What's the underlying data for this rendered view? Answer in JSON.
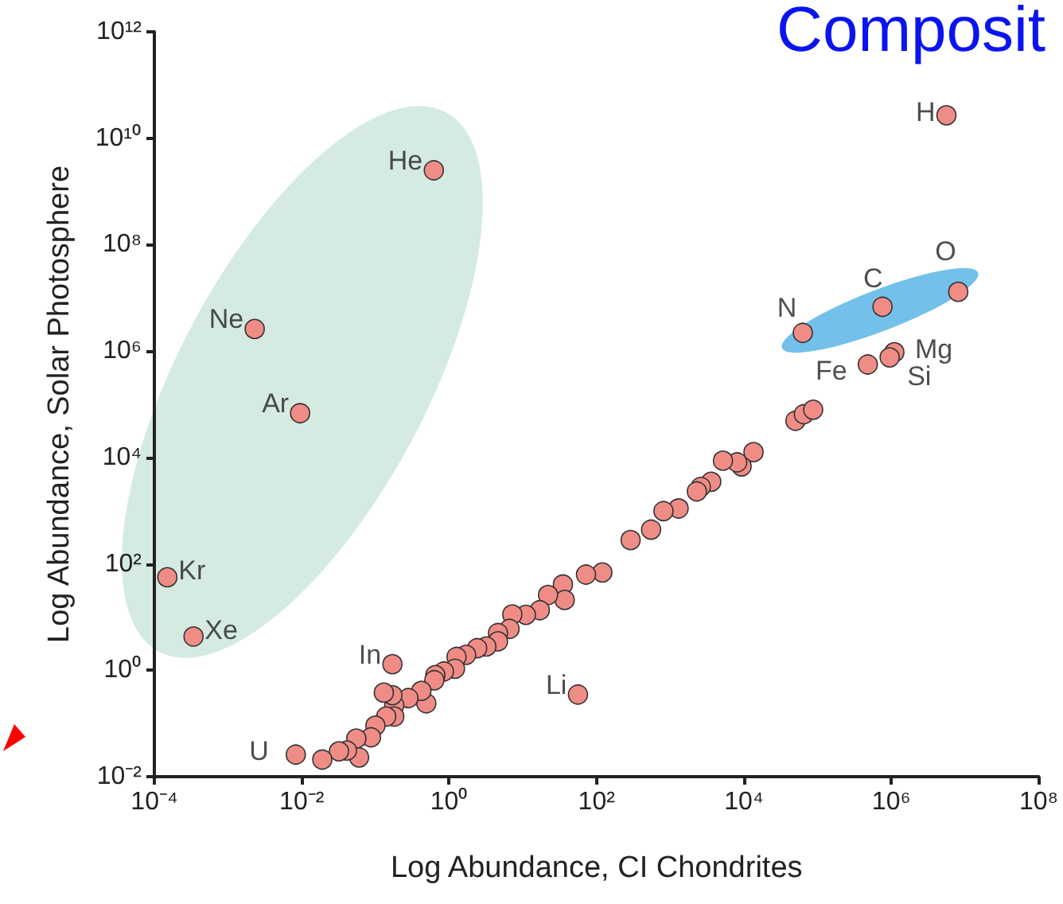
{
  "chart_data": {
    "type": "scatter",
    "title": "Composit",
    "xlabel": "Log Abundance, CI Chondrites",
    "ylabel": "Log Abundance, Solar Photosphere",
    "log": "xy",
    "marker": "circle",
    "grid": false,
    "xlim": [
      0.0001,
      100000000.0
    ],
    "ylim": [
      0.01,
      1000000000000.0
    ],
    "xticks": [
      {
        "value": 0.0001,
        "label": "10⁻⁴"
      },
      {
        "value": 0.01,
        "label": "10⁻²"
      },
      {
        "value": 1,
        "label": "10⁰"
      },
      {
        "value": 100.0,
        "label": "10²"
      },
      {
        "value": 10000.0,
        "label": "10⁴"
      },
      {
        "value": 1000000.0,
        "label": "10⁶"
      },
      {
        "value": 100000000.0,
        "label": "10⁸"
      }
    ],
    "yticks": [
      {
        "value": 0.01,
        "label": "10⁻²"
      },
      {
        "value": 1,
        "label": "10⁰"
      },
      {
        "value": 100.0,
        "label": "10²"
      },
      {
        "value": 10000.0,
        "label": "10⁴"
      },
      {
        "value": 1000000.0,
        "label": "10⁶"
      },
      {
        "value": 100000000.0,
        "label": "10⁸"
      },
      {
        "value": 10000000000.0,
        "label": "10¹⁰"
      },
      {
        "value": 1000000000000.0,
        "label": "10¹²"
      }
    ],
    "series": [
      {
        "color": "#f08c86",
        "x": [
          0.62,
          0.0023,
          0.0095,
          0.00015,
          0.00034,
          0.17,
          0.0083,
          56,
          5600000.0,
          8100000.0,
          760000.0,
          63000.0,
          480000.0,
          1100000.0,
          950000.0,
          50000.0,
          65000.0,
          87000.0,
          13500.0,
          9300.0,
          8100.0,
          5200.0,
          3600.0,
          2600.0,
          2300.0,
          1300.0,
          810,
          550,
          290,
          120,
          72,
          35,
          37,
          22,
          17,
          11,
          7.2,
          6.6,
          4.6,
          4.6,
          3.2,
          2.4,
          1.7,
          1.26,
          1.2,
          0.85,
          0.65,
          0.63,
          0.49,
          0.42,
          0.28,
          0.18,
          0.17,
          0.13,
          0.18,
          0.14,
          0.1,
          0.087,
          0.055,
          0.06,
          0.041,
          0.032,
          0.019
        ],
        "values": [
          2500000000.0,
          2600000.0,
          68000.0,
          56,
          4.3,
          1.3,
          0.026,
          0.35,
          27000000000.0,
          13000000.0,
          6800000.0,
          2200000.0,
          560000.0,
          950000.0,
          760000.0,
          49000.0,
          65000.0,
          79000.0,
          12600.0,
          6800.0,
          8100.0,
          8700.0,
          3500.0,
          2800.0,
          2300.0,
          1100.0,
          980,
          440,
          280,
          69,
          63,
          41,
          21,
          26,
          13.5,
          11,
          11.2,
          6.0,
          5.0,
          3.5,
          2.8,
          2.6,
          1.95,
          1.78,
          1.07,
          0.95,
          0.81,
          0.65,
          0.24,
          0.41,
          0.3,
          0.22,
          0.34,
          0.38,
          0.135,
          0.135,
          0.091,
          0.055,
          0.052,
          0.023,
          0.031,
          0.03,
          0.021
        ]
      }
    ],
    "annotations": [
      {
        "text": "He",
        "x": 0.62,
        "y": 2500000000.0
      },
      {
        "text": "Ne",
        "x": 0.0023,
        "y": 2600000.0
      },
      {
        "text": "Ar",
        "x": 0.0095,
        "y": 68000.0
      },
      {
        "text": "Kr",
        "x": 0.00015,
        "y": 56
      },
      {
        "text": "Xe",
        "x": 0.00034,
        "y": 4.3
      },
      {
        "text": "In",
        "x": 0.17,
        "y": 1.3
      },
      {
        "text": "U",
        "x": 0.0083,
        "y": 0.026
      },
      {
        "text": "Li",
        "x": 56,
        "y": 0.35
      },
      {
        "text": "H",
        "x": 5600000.0,
        "y": 27000000000.0
      },
      {
        "text": "O",
        "x": 8100000.0,
        "y": 13000000.0
      },
      {
        "text": "C",
        "x": 760000.0,
        "y": 6800000.0
      },
      {
        "text": "N",
        "x": 63000.0,
        "y": 2200000.0
      },
      {
        "text": "Fe",
        "x": 480000.0,
        "y": 560000.0
      },
      {
        "text": "Mg",
        "x": 1100000.0,
        "y": 950000.0
      },
      {
        "text": "Si",
        "x": 950000.0,
        "y": 760000.0
      }
    ]
  }
}
